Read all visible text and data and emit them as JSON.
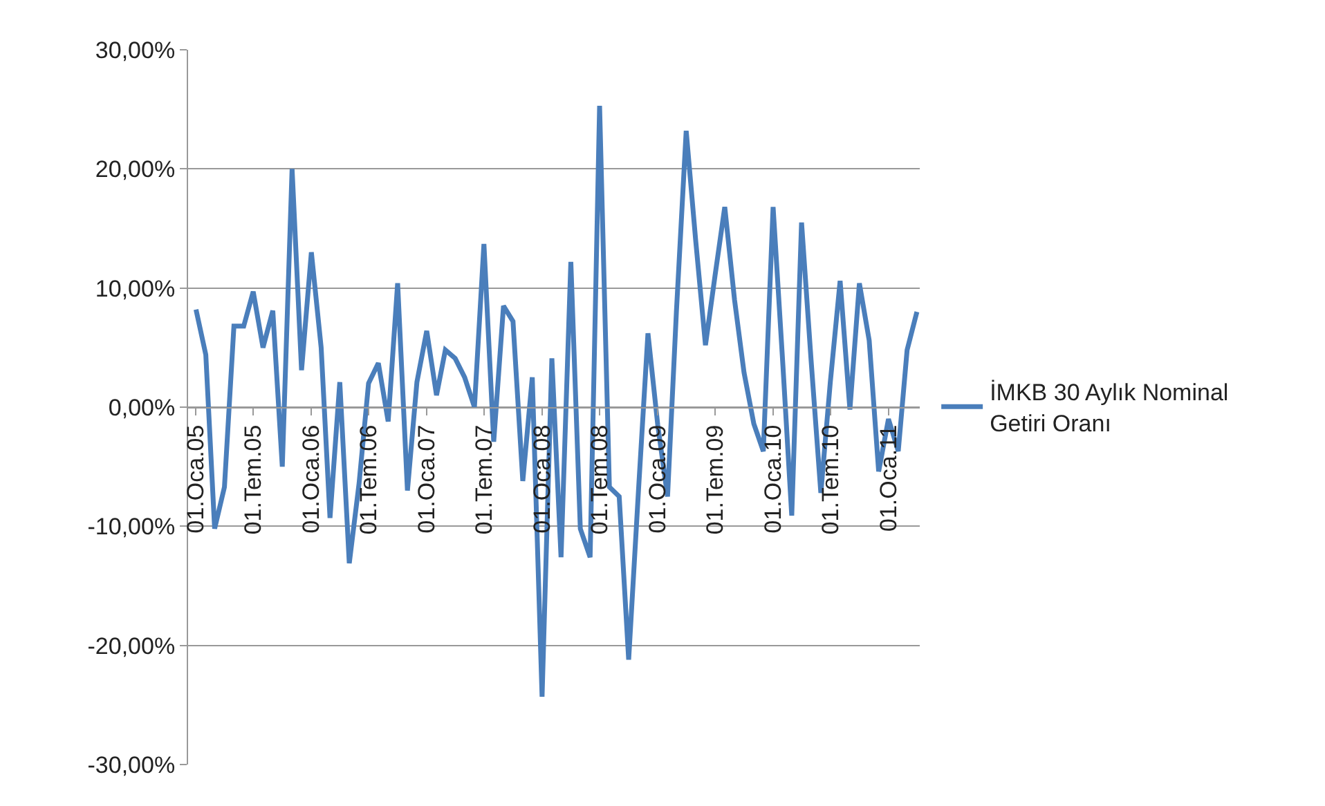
{
  "chart_data": {
    "type": "line",
    "x": [
      "2005-01-01",
      "2005-02-01",
      "2005-03-01",
      "2005-04-01",
      "2005-05-01",
      "2005-06-01",
      "2005-07-01",
      "2005-08-01",
      "2005-09-01",
      "2005-10-01",
      "2005-11-01",
      "2005-12-01",
      "2006-01-01",
      "2006-02-01",
      "2006-03-01",
      "2006-04-01",
      "2006-05-01",
      "2006-06-01",
      "2006-07-01",
      "2006-08-01",
      "2006-09-01",
      "2006-10-01",
      "2006-11-01",
      "2006-12-01",
      "2007-01-01",
      "2007-02-01",
      "2007-03-01",
      "2007-04-01",
      "2007-05-01",
      "2007-06-01",
      "2007-07-01",
      "2007-08-01",
      "2007-09-01",
      "2007-10-01",
      "2007-11-01",
      "2007-12-01",
      "2008-01-01",
      "2008-02-01",
      "2008-03-01",
      "2008-04-01",
      "2008-05-01",
      "2008-06-01",
      "2008-07-01",
      "2008-08-01",
      "2008-09-01",
      "2008-10-01",
      "2008-11-01",
      "2008-12-01",
      "2009-01-01",
      "2009-02-01",
      "2009-03-01",
      "2009-04-01",
      "2009-05-01",
      "2009-06-01",
      "2009-07-01",
      "2009-08-01",
      "2009-09-01",
      "2009-10-01",
      "2009-11-01",
      "2009-12-01",
      "2010-01-01",
      "2010-02-01",
      "2010-03-01",
      "2010-04-01",
      "2010-05-01",
      "2010-06-01",
      "2010-07-01",
      "2010-08-01",
      "2010-09-01",
      "2010-10-01",
      "2010-11-01",
      "2010-12-01",
      "2011-01-01",
      "2011-02-01",
      "2011-03-01",
      "2011-04-01"
    ],
    "series": [
      {
        "name": "İMKB 30 Aylık Nominal Getiri Oranı",
        "color": "#4a7ebb",
        "values": [
          8.2,
          4.4,
          -10.2,
          -6.7,
          6.8,
          6.8,
          9.7,
          5.0,
          8.1,
          -5.0,
          20.0,
          3.1,
          13.0,
          5.0,
          -9.3,
          2.1,
          -13.1,
          -6.4,
          2.0,
          3.7,
          -1.2,
          10.4,
          -7.0,
          2.1,
          6.4,
          1.0,
          4.8,
          4.1,
          2.5,
          0,
          13.7,
          -2.9,
          8.5,
          7.2,
          -6.2,
          2.5,
          -24.3,
          4.1,
          -12.6,
          12.2,
          -10.2,
          -12.6,
          25.3,
          -6.7,
          -7.5,
          -21.2,
          -7.0,
          6.2,
          -1.5,
          -7.5,
          8.0,
          23.2,
          14.0,
          5.2,
          11.0,
          16.8,
          9.0,
          2.9,
          -1.4,
          -3.7,
          16.8,
          3.5,
          -9.1,
          15.5,
          4.0,
          -7.2,
          2.1,
          10.6,
          -0.2,
          10.4,
          5.6,
          -5.4,
          -1.0,
          -3.7,
          4.8,
          8.0
        ]
      }
    ],
    "xlim": [
      "2004-12-07",
      "2011-04-10"
    ],
    "xticks": [
      {
        "value": "2005-01-01",
        "label": "01.Oca.05"
      },
      {
        "value": "2005-07-01",
        "label": "01.Tem.05"
      },
      {
        "value": "2006-01-01",
        "label": "01.Oca.06"
      },
      {
        "value": "2006-07-01",
        "label": "01.Tem.06"
      },
      {
        "value": "2007-01-01",
        "label": "01.Oca.07"
      },
      {
        "value": "2007-07-01",
        "label": "01.Tem.07"
      },
      {
        "value": "2008-01-01",
        "label": "01.Oca.08"
      },
      {
        "value": "2008-07-01",
        "label": "01.Tem.08"
      },
      {
        "value": "2009-01-01",
        "label": "01.Oca.09"
      },
      {
        "value": "2009-07-01",
        "label": "01.Tem.09"
      },
      {
        "value": "2010-01-01",
        "label": "01.Oca.10"
      },
      {
        "value": "2010-07-01",
        "label": "01.Tem.10"
      },
      {
        "value": "2011-01-01",
        "label": "01.Oca.11"
      }
    ],
    "ylim": [
      -30,
      30
    ],
    "yticks": [
      {
        "value": -30,
        "label": "-30,00%"
      },
      {
        "value": -20,
        "label": "-20,00%"
      },
      {
        "value": -10,
        "label": "-10,00%"
      },
      {
        "value": 0,
        "label": "0,00%"
      },
      {
        "value": 10,
        "label": "10,00%"
      },
      {
        "value": 20,
        "label": "20,00%"
      },
      {
        "value": 30,
        "label": "30,00%"
      }
    ],
    "grid": "y",
    "legend": "right",
    "marker": "none",
    "line_style": "solid"
  }
}
